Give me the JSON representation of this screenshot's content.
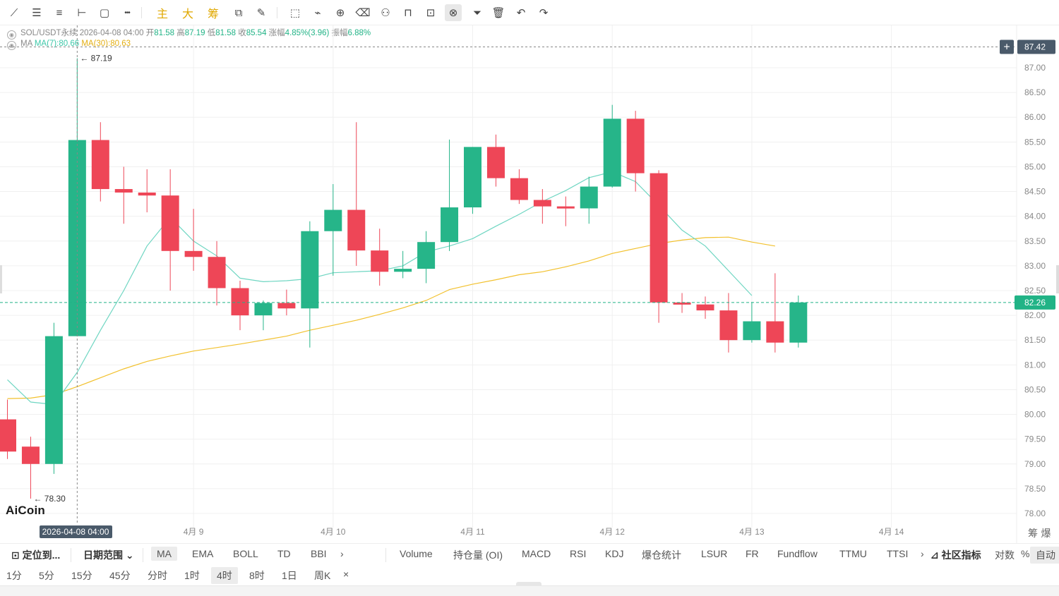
{
  "toolbar": {
    "tools": [
      {
        "icon": "line-tool-icon",
        "glyph": "⟋"
      },
      {
        "icon": "parallel-lines-icon",
        "glyph": "☰"
      },
      {
        "icon": "horizontal-lines-icon",
        "glyph": "≡"
      },
      {
        "icon": "ray-icon",
        "glyph": "⊢"
      },
      {
        "icon": "rectangle-icon",
        "glyph": "▢"
      },
      {
        "icon": "more-tools-icon",
        "glyph": "•••"
      },
      {
        "icon": "main-indicator-icon",
        "glyph": "主",
        "cn": true
      },
      {
        "icon": "big-order-icon",
        "glyph": "大",
        "cn": true
      },
      {
        "icon": "chip-distribution-icon",
        "glyph": "筹",
        "cn": true
      },
      {
        "icon": "ai-pattern-icon",
        "glyph": "⧉"
      },
      {
        "icon": "measure-icon",
        "glyph": "✎"
      },
      {
        "icon": "select-icon",
        "glyph": "⬚"
      },
      {
        "icon": "ruler-icon",
        "glyph": "⌁"
      },
      {
        "icon": "zoom-in-icon",
        "glyph": "⊕"
      },
      {
        "icon": "eraser-icon",
        "glyph": "⌫"
      },
      {
        "icon": "show-hide-icon",
        "glyph": "⚇"
      },
      {
        "icon": "lock-icon",
        "glyph": "⊓"
      },
      {
        "icon": "alert-icon",
        "glyph": "⊡"
      },
      {
        "icon": "magnet-icon",
        "glyph": "⊗",
        "active": true
      },
      {
        "icon": "filter-icon",
        "glyph": "⏷"
      },
      {
        "icon": "trash-icon",
        "glyph": "🗑"
      },
      {
        "icon": "undo-icon",
        "glyph": "↶"
      },
      {
        "icon": "redo-icon",
        "glyph": "↷"
      }
    ]
  },
  "info": {
    "symbol": "SOL/USDT永续",
    "datetime": "2026-04-08 04:00",
    "open_label": "开",
    "open": "81.58",
    "high_label": "高",
    "high": "87.19",
    "low_label": "低",
    "low": "81.58",
    "close_label": "收",
    "close": "85.54",
    "change_label": "涨幅",
    "change": "4.85%(3.96)",
    "amp_label": "振幅",
    "amp": "6.88%",
    "ma_label": "MA",
    "ma7": "MA(7):80.66",
    "ma30": "MA(30):80.63"
  },
  "colors": {
    "up": "#26b589",
    "down": "#ee4657",
    "ma7": "#6fd6c2",
    "ma30": "#f2c12e",
    "grid": "#f0f0f0",
    "axis_text": "#888888",
    "crosshair": "#888888",
    "price_tag": "#21b386",
    "hover_tag": "#4a5a6a"
  },
  "chart_data": {
    "type": "candlestick",
    "ylim": [
      77.8,
      87.6
    ],
    "yticks": [
      "87.00",
      "86.50",
      "86.00",
      "85.50",
      "85.00",
      "84.50",
      "84.00",
      "83.50",
      "83.00",
      "82.50",
      "82.00",
      "81.50",
      "81.00",
      "80.50",
      "80.00",
      "79.50",
      "79.00",
      "78.50",
      "78.00"
    ],
    "xticks": [
      {
        "label": "4月 9",
        "index": 8
      },
      {
        "label": "4月 10",
        "index": 14
      },
      {
        "label": "4月 11",
        "index": 20
      },
      {
        "label": "4月 12",
        "index": 26
      },
      {
        "label": "4月 13",
        "index": 32
      },
      {
        "label": "4月 14",
        "index": 38
      }
    ],
    "candles": [
      {
        "o": 79.9,
        "h": 80.3,
        "l": 79.1,
        "c": 79.25
      },
      {
        "o": 79.35,
        "h": 79.55,
        "l": 78.3,
        "c": 79.0
      },
      {
        "o": 79.0,
        "h": 81.85,
        "l": 78.8,
        "c": 81.58
      },
      {
        "o": 81.58,
        "h": 87.19,
        "l": 81.58,
        "c": 85.54
      },
      {
        "o": 85.54,
        "h": 85.9,
        "l": 84.3,
        "c": 84.55
      },
      {
        "o": 84.55,
        "h": 85.0,
        "l": 83.85,
        "c": 84.48
      },
      {
        "o": 84.48,
        "h": 84.95,
        "l": 84.08,
        "c": 84.42
      },
      {
        "o": 84.42,
        "h": 84.95,
        "l": 82.5,
        "c": 83.3
      },
      {
        "o": 83.3,
        "h": 84.15,
        "l": 82.9,
        "c": 83.18
      },
      {
        "o": 83.18,
        "h": 83.5,
        "l": 82.2,
        "c": 82.55
      },
      {
        "o": 82.55,
        "h": 82.7,
        "l": 81.7,
        "c": 82.0
      },
      {
        "o": 82.0,
        "h": 82.3,
        "l": 81.7,
        "c": 82.25
      },
      {
        "o": 82.25,
        "h": 82.52,
        "l": 82.0,
        "c": 82.14
      },
      {
        "o": 82.14,
        "h": 83.9,
        "l": 81.35,
        "c": 83.7
      },
      {
        "o": 83.7,
        "h": 84.65,
        "l": 82.8,
        "c": 84.13
      },
      {
        "o": 84.13,
        "h": 85.9,
        "l": 83.0,
        "c": 83.31
      },
      {
        "o": 83.31,
        "h": 83.75,
        "l": 82.6,
        "c": 82.88
      },
      {
        "o": 82.88,
        "h": 83.3,
        "l": 82.75,
        "c": 82.94
      },
      {
        "o": 82.94,
        "h": 83.7,
        "l": 82.65,
        "c": 83.48
      },
      {
        "o": 83.48,
        "h": 85.55,
        "l": 83.3,
        "c": 84.18
      },
      {
        "o": 84.18,
        "h": 85.4,
        "l": 84.05,
        "c": 85.4
      },
      {
        "o": 85.4,
        "h": 85.65,
        "l": 84.6,
        "c": 84.77
      },
      {
        "o": 84.77,
        "h": 84.95,
        "l": 84.25,
        "c": 84.33
      },
      {
        "o": 84.33,
        "h": 84.55,
        "l": 83.85,
        "c": 84.2
      },
      {
        "o": 84.2,
        "h": 84.4,
        "l": 83.8,
        "c": 84.16
      },
      {
        "o": 84.16,
        "h": 84.8,
        "l": 83.85,
        "c": 84.6
      },
      {
        "o": 84.6,
        "h": 86.25,
        "l": 84.58,
        "c": 85.97
      },
      {
        "o": 85.97,
        "h": 86.13,
        "l": 84.5,
        "c": 84.87
      },
      {
        "o": 84.87,
        "h": 84.93,
        "l": 81.85,
        "c": 82.26
      },
      {
        "o": 82.26,
        "h": 82.45,
        "l": 82.05,
        "c": 82.22
      },
      {
        "o": 82.22,
        "h": 82.38,
        "l": 81.93,
        "c": 82.1
      },
      {
        "o": 82.1,
        "h": 82.45,
        "l": 81.25,
        "c": 81.5
      },
      {
        "o": 81.5,
        "h": 82.27,
        "l": 81.45,
        "c": 81.88
      },
      {
        "o": 81.88,
        "h": 82.85,
        "l": 81.25,
        "c": 81.45
      },
      {
        "o": 81.45,
        "h": 82.4,
        "l": 81.35,
        "c": 82.26
      }
    ],
    "ma7": [
      80.7,
      80.25,
      80.2,
      80.85,
      81.7,
      82.5,
      83.4,
      83.98,
      83.5,
      83.2,
      82.75,
      82.68,
      82.7,
      82.74,
      82.86,
      82.88,
      82.9,
      83.0,
      83.28,
      83.4,
      83.55,
      83.8,
      84.04,
      84.3,
      84.52,
      84.78,
      84.9,
      84.7,
      84.22,
      83.72,
      83.4,
      82.9,
      82.4
    ],
    "ma30": [
      80.32,
      80.33,
      80.4,
      80.56,
      80.74,
      80.92,
      81.07,
      81.18,
      81.28,
      81.35,
      81.42,
      81.5,
      81.58,
      81.7,
      81.8,
      81.9,
      82.02,
      82.15,
      82.3,
      82.52,
      82.63,
      82.72,
      82.82,
      82.88,
      82.98,
      83.1,
      83.25,
      83.35,
      83.45,
      83.52,
      83.57,
      83.58,
      83.48,
      83.4
    ],
    "ma_start": [
      0,
      0
    ],
    "last_price": "82.26",
    "hover_price": "87.42",
    "hover_date": "2026-04-08 04:00",
    "hover_index": 3,
    "max_label": "87.19",
    "min_label": "78.30",
    "corner_label": "筹 爆"
  },
  "logo": "AiCoin",
  "bottom": {
    "row1": [
      {
        "t": "定位到...",
        "icon": "locate-icon",
        "bold": true
      },
      {
        "t": "日期范围 ⌄",
        "bold": true
      },
      {
        "t": "MA",
        "act": true
      },
      {
        "t": "EMA"
      },
      {
        "t": "BOLL"
      },
      {
        "t": "TD"
      },
      {
        "t": "BBI"
      },
      {
        "t": "›"
      },
      {
        "t": "Volume"
      },
      {
        "t": "持仓量 (OI)"
      },
      {
        "t": "MACD"
      },
      {
        "t": "RSI"
      },
      {
        "t": "KDJ"
      },
      {
        "t": "爆仓统计"
      },
      {
        "t": "LSUR"
      },
      {
        "t": "FR"
      },
      {
        "t": "Fundflow"
      },
      {
        "t": "TTMU"
      },
      {
        "t": "TTSI"
      },
      {
        "t": "›"
      },
      {
        "t": "⊿ 社区指标",
        "bold": true
      },
      {
        "t": "对数"
      },
      {
        "t": "%"
      },
      {
        "t": "自动",
        "act": true
      }
    ],
    "row2": [
      {
        "t": "1分"
      },
      {
        "t": "5分"
      },
      {
        "t": "15分"
      },
      {
        "t": "45分"
      },
      {
        "t": "分时"
      },
      {
        "t": "1时"
      },
      {
        "t": "4时",
        "act": true
      },
      {
        "t": "8时"
      },
      {
        "t": "1日"
      },
      {
        "t": "周K"
      },
      {
        "t": "×"
      }
    ]
  }
}
